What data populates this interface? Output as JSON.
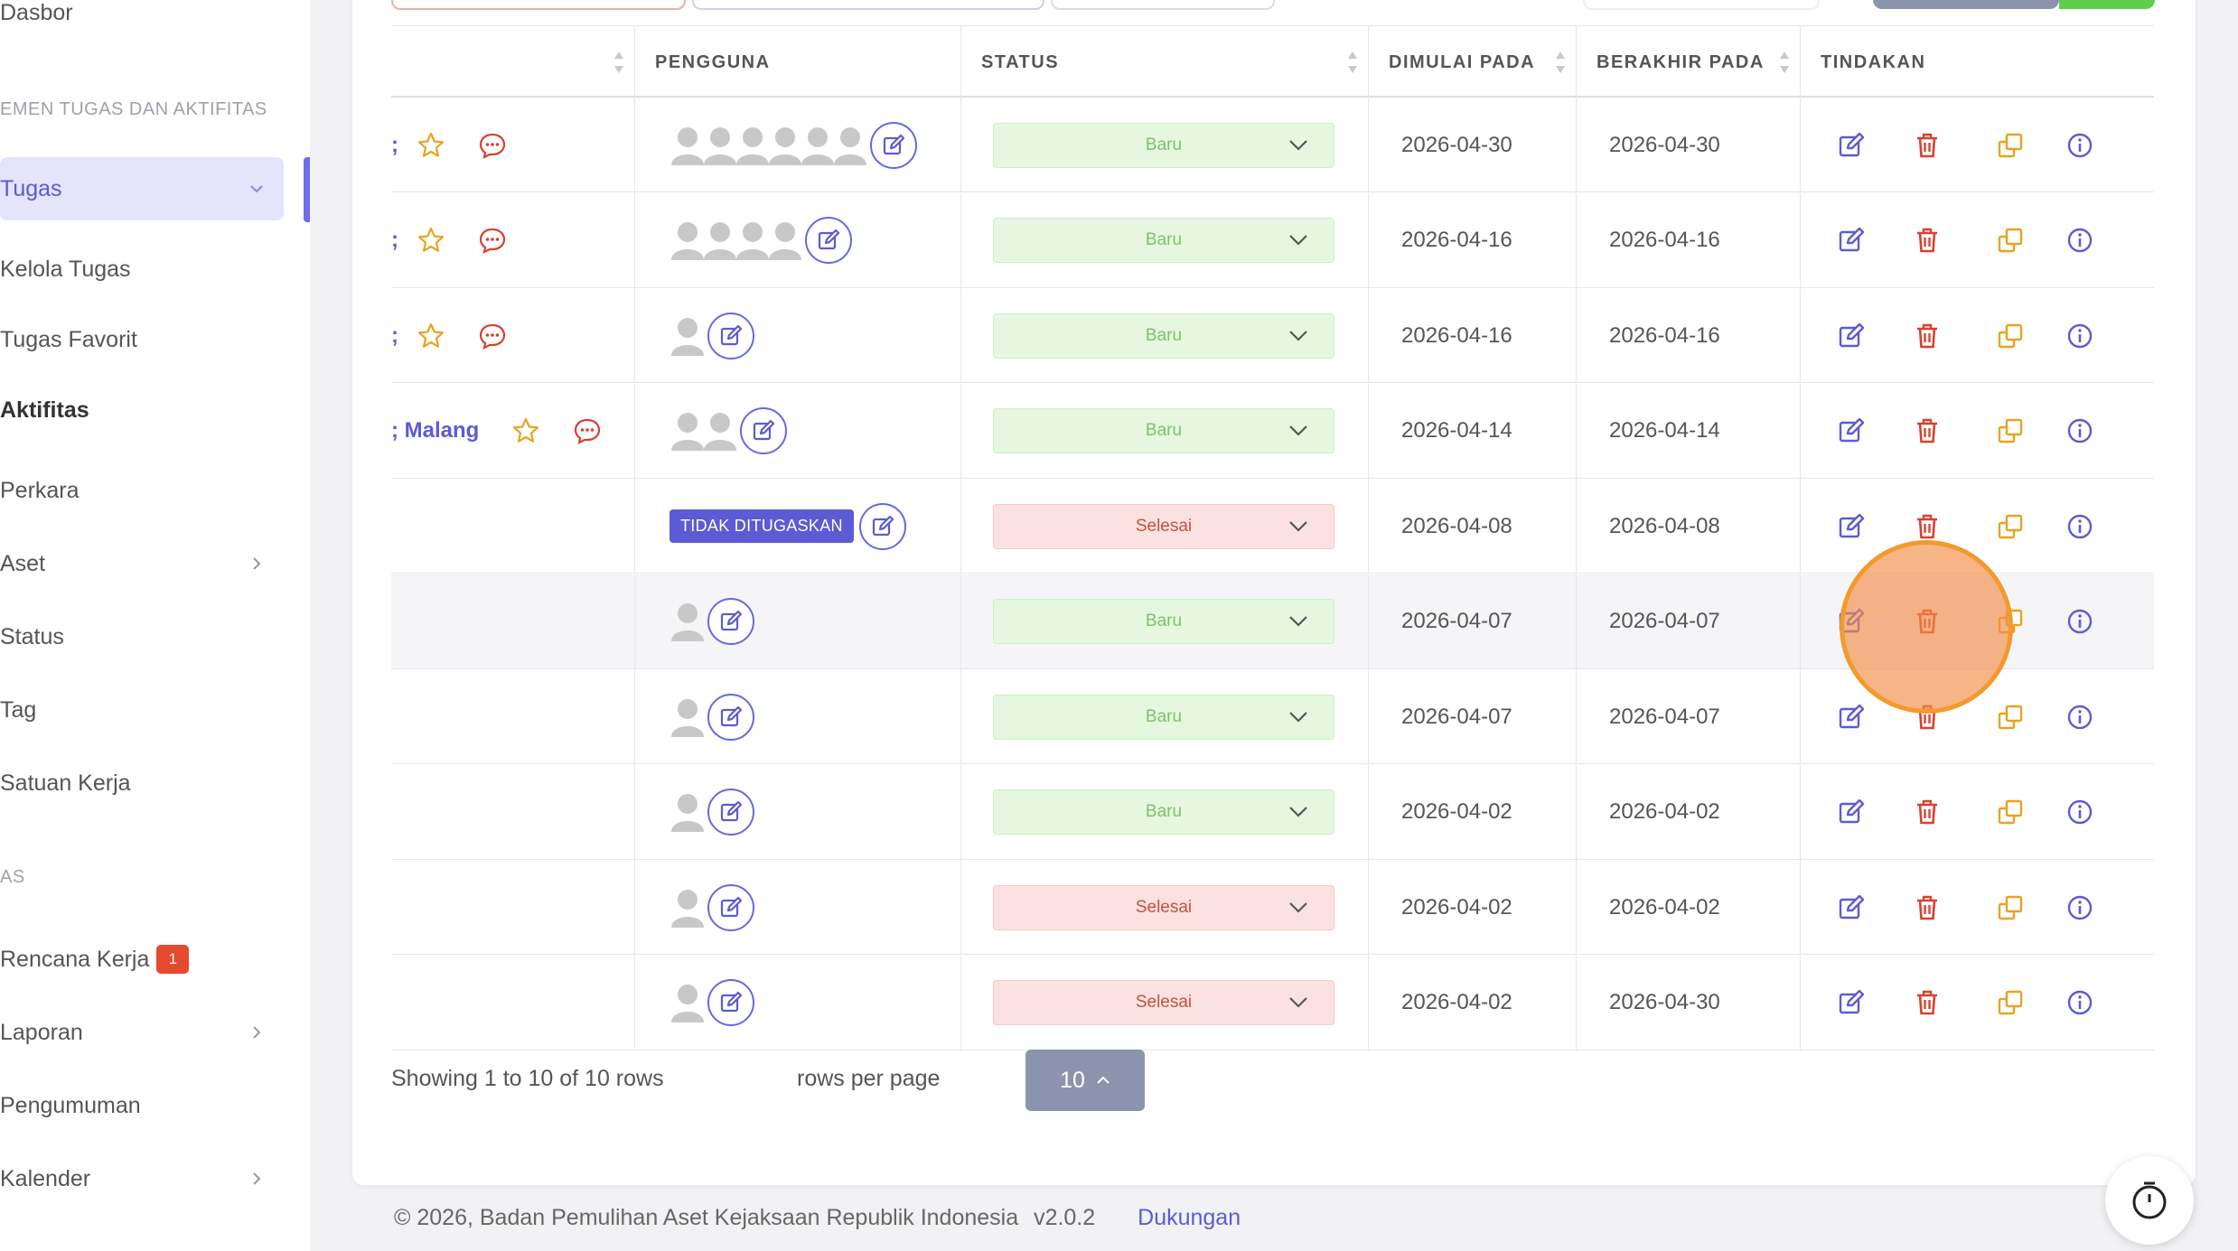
{
  "sidebar": {
    "items": [
      {
        "label": "Dasbor",
        "top": 0
      },
      {
        "section": "EMEN TUGAS DAN AKTIFITAS"
      },
      {
        "label": "Tugas"
      },
      {
        "label": "Kelola Tugas"
      },
      {
        "label": "Tugas Favorit"
      },
      {
        "label": "Aktifitas"
      },
      {
        "label": "Perkara"
      },
      {
        "label": "Aset"
      },
      {
        "label": "Status"
      },
      {
        "label": "Tag"
      },
      {
        "label": "Satuan Kerja"
      },
      {
        "section": "AS"
      },
      {
        "label": "Rencana Kerja",
        "badge": "1"
      },
      {
        "label": "Laporan"
      },
      {
        "label": "Pengumuman"
      },
      {
        "label": "Kalender"
      }
    ]
  },
  "table": {
    "headers": [
      "PENGGUNA",
      "STATUS",
      "DIMULAI PADA",
      "BERAKHIR PADA",
      "TINDAKAN"
    ],
    "rows": [
      {
        "name": "",
        "users": 6,
        "status": "Baru",
        "start": "2026-04-30",
        "end": "2026-04-30"
      },
      {
        "name": "",
        "users": 4,
        "status": "Baru",
        "start": "2026-04-16",
        "end": "2026-04-16"
      },
      {
        "name": "",
        "users": 1,
        "status": "Baru",
        "start": "2026-04-16",
        "end": "2026-04-16"
      },
      {
        "name": "Malang",
        "users": 2,
        "status": "Baru",
        "start": "2026-04-14",
        "end": "2026-04-14"
      },
      {
        "name": "",
        "users": 0,
        "unassigned": "TIDAK DITUGASKAN",
        "status": "Selesai",
        "start": "2026-04-08",
        "end": "2026-04-08"
      },
      {
        "name": "",
        "users": 1,
        "status": "Baru",
        "start": "2026-04-07",
        "end": "2026-04-07"
      },
      {
        "name": "",
        "users": 1,
        "status": "Baru",
        "start": "2026-04-07",
        "end": "2026-04-07"
      },
      {
        "name": "",
        "users": 1,
        "status": "Baru",
        "start": "2026-04-02",
        "end": "2026-04-02"
      },
      {
        "name": "",
        "users": 1,
        "status": "Selesai",
        "start": "2026-04-02",
        "end": "2026-04-02"
      },
      {
        "name": "",
        "users": 1,
        "status": "Selesai",
        "start": "2026-04-02",
        "end": "2026-04-30"
      }
    ]
  },
  "pagination": {
    "showing": "Showing 1 to 10 of 10 rows",
    "page_size": "10",
    "suffix": "rows per page"
  },
  "footer": {
    "copyright": "© 2026, Badan Pemulihan Aset Kejaksaan Republik Indonesia",
    "version": "v2.0.2",
    "support": "Dukungan"
  },
  "colors": {
    "accent": "#5b5bd6",
    "baru_bg": "#e6f7e0",
    "selesai_bg": "#fbe2e0",
    "delete": "#d9412f",
    "copy": "#e8a321"
  }
}
